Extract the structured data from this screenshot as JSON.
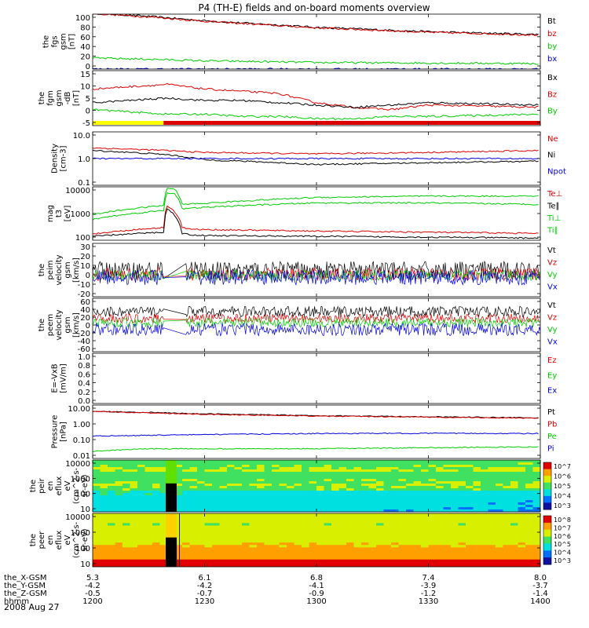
{
  "title": "P4 (TH-E) fields and on-board moments overview",
  "date": "2008 Aug 27",
  "colors": {
    "black": "#000000",
    "red": "#dd0000",
    "green": "#00cc00",
    "blue": "#0000dd",
    "yellow": "#ffff00"
  },
  "chart_data": [
    {
      "type": "line",
      "id": "fgs",
      "ylabel": [
        "the",
        "fgs",
        "gsm",
        "[nT]"
      ],
      "yticks": [
        "100",
        "80",
        "60",
        "40",
        "20",
        "0"
      ],
      "ylim": [
        0,
        100
      ],
      "legend": [
        {
          "name": "Bt",
          "color": "black"
        },
        {
          "name": "bz",
          "color": "red"
        },
        {
          "name": "by",
          "color": "green"
        },
        {
          "name": "bx",
          "color": "blue"
        }
      ],
      "series": [
        {
          "name": "Bt",
          "x": [
            1200,
            1215,
            1230,
            1300,
            1330,
            1400
          ],
          "y": [
            102,
            96,
            88,
            76,
            68,
            63
          ]
        },
        {
          "name": "bz",
          "x": [
            1200,
            1215,
            1230,
            1300,
            1330,
            1400
          ],
          "y": [
            101,
            95,
            87,
            75,
            67,
            62
          ]
        },
        {
          "name": "by",
          "x": [
            1200,
            1215,
            1230,
            1300,
            1330,
            1400
          ],
          "y": [
            20,
            18,
            15,
            12,
            11,
            10
          ]
        },
        {
          "name": "bx",
          "x": [
            1200,
            1215,
            1230,
            1300,
            1330,
            1400
          ],
          "y": [
            0,
            0,
            0,
            0,
            0,
            0
          ]
        }
      ]
    },
    {
      "type": "line",
      "id": "fgm_dsl",
      "ylabel": [
        "the",
        "fgm",
        "gsm",
        "-dB",
        "[nT]"
      ],
      "yticks": [
        "15",
        "10",
        "5",
        "0",
        "-5"
      ],
      "ylim": [
        -8,
        16
      ],
      "legend": [
        {
          "name": "Bx",
          "color": "black"
        },
        {
          "name": "Bz",
          "color": "red"
        },
        {
          "name": "By",
          "color": "green"
        }
      ],
      "series": [
        {
          "name": "Bz",
          "x": [
            1200,
            1210,
            1220,
            1230,
            1240,
            1250,
            1300,
            1310,
            1320,
            1330,
            1400
          ],
          "y": [
            8,
            9,
            10,
            8,
            7,
            6,
            2,
            0,
            -1,
            1,
            0
          ]
        },
        {
          "name": "Bx",
          "x": [
            1200,
            1210,
            1220,
            1230,
            1240,
            1250,
            1300,
            1310,
            1320,
            1330,
            1400
          ],
          "y": [
            2,
            3,
            4,
            3,
            3,
            2,
            1,
            0,
            1,
            2,
            1
          ]
        },
        {
          "name": "By",
          "x": [
            1200,
            1210,
            1220,
            1230,
            1240,
            1250,
            1300,
            1310,
            1320,
            1330,
            1400
          ],
          "y": [
            -1,
            -2,
            -3,
            -3,
            -4,
            -4,
            -5,
            -5,
            -4,
            -4,
            -3
          ]
        }
      ],
      "mode_bar": [
        {
          "from": 1200,
          "to": 1219,
          "color": "yellow"
        },
        {
          "from": 1219,
          "to": 1400,
          "color": "red"
        }
      ]
    },
    {
      "type": "line",
      "id": "density",
      "yscale": "log",
      "ylabel": [
        "Density",
        "[cm-3]"
      ],
      "yticks": [
        "10.0",
        "1.0",
        "0.1"
      ],
      "ylim": [
        0.1,
        10
      ],
      "legend": [
        {
          "name": "Ne",
          "color": "red"
        },
        {
          "name": "Ni",
          "color": "black"
        },
        {
          "name": "Npot",
          "color": "blue"
        }
      ],
      "series": [
        {
          "name": "Ne",
          "x": [
            1200,
            1220,
            1230,
            1300,
            1330,
            1400
          ],
          "y": [
            2.5,
            2.0,
            1.7,
            1.5,
            1.7,
            2.0
          ]
        },
        {
          "name": "Ni",
          "x": [
            1200,
            1220,
            1230,
            1300,
            1330,
            1400
          ],
          "y": [
            2.0,
            1.4,
            0.9,
            0.6,
            0.7,
            0.8
          ]
        },
        {
          "name": "Npot",
          "x": [
            1200,
            1220,
            1230,
            1300,
            1330,
            1400
          ],
          "y": [
            1.0,
            1.0,
            1.0,
            1.0,
            1.0,
            1.0
          ]
        }
      ]
    },
    {
      "type": "line",
      "id": "temperature",
      "yscale": "log",
      "ylabel": [
        "mag",
        "t3",
        "[eV]"
      ],
      "yticks": [
        "10000",
        "1000",
        "100"
      ],
      "ylim": [
        100,
        10000
      ],
      "legend": [
        {
          "name": "Te⊥",
          "color": "red"
        },
        {
          "name": "Te∥",
          "color": "black"
        },
        {
          "name": "Ti⊥",
          "color": "green"
        },
        {
          "name": "Ti∥",
          "color": "green"
        }
      ],
      "series": [
        {
          "name": "Ti⊥",
          "x": [
            1200,
            1219,
            1220,
            1222,
            1224,
            1230,
            1300,
            1330,
            1400
          ],
          "y": [
            900,
            2000,
            9000,
            8000,
            2200,
            2400,
            4000,
            4500,
            4500
          ]
        },
        {
          "name": "Ti∥",
          "x": [
            1200,
            1219,
            1220,
            1222,
            1224,
            1230,
            1300,
            1330,
            1400
          ],
          "y": [
            600,
            1300,
            6000,
            5500,
            1500,
            1700,
            2500,
            2500,
            2200
          ]
        },
        {
          "name": "Te⊥",
          "x": [
            1200,
            1219,
            1220,
            1224,
            1226,
            1230,
            1300,
            1330,
            1400
          ],
          "y": [
            170,
            300,
            2000,
            300,
            260,
            250,
            220,
            200,
            180
          ]
        },
        {
          "name": "Te∥",
          "x": [
            1200,
            1219,
            1220,
            1224,
            1226,
            1230,
            1300,
            1330,
            1400
          ],
          "y": [
            140,
            200,
            1500,
            180,
            160,
            150,
            140,
            130,
            120
          ]
        }
      ]
    },
    {
      "type": "line",
      "id": "peim_velocity_1",
      "ylabel": [
        "the",
        "peim",
        "velocity",
        "gsm",
        "[km/s]"
      ],
      "yticks": [
        "30",
        "20",
        "10",
        "0",
        "-10",
        "-20"
      ],
      "ylim": [
        -20,
        30
      ],
      "legend": [
        {
          "name": "Vt",
          "color": "black"
        },
        {
          "name": "Vz",
          "color": "red"
        },
        {
          "name": "Vy",
          "color": "green"
        },
        {
          "name": "Vx",
          "color": "blue"
        }
      ],
      "noise": [
        {
          "name": "Vt",
          "mean": 5,
          "amp": 8
        },
        {
          "name": "Vz",
          "mean": 1,
          "amp": 6
        },
        {
          "name": "Vy",
          "mean": 0,
          "amp": 5
        },
        {
          "name": "Vx",
          "mean": -2,
          "amp": 7
        }
      ]
    },
    {
      "type": "line",
      "id": "peem_velocity",
      "ylabel": [
        "the",
        "peem",
        "velocity",
        "gsm",
        "[km/s]"
      ],
      "yticks": [
        "60",
        "40",
        "20",
        "0",
        "-20",
        "-40",
        "-60"
      ],
      "ylim": [
        -60,
        60
      ],
      "legend": [
        {
          "name": "Vt",
          "color": "black"
        },
        {
          "name": "Vz",
          "color": "red"
        },
        {
          "name": "Vy",
          "color": "green"
        },
        {
          "name": "Vx",
          "color": "blue"
        }
      ],
      "noise": [
        {
          "name": "Vt",
          "mean": 30,
          "amp": 12
        },
        {
          "name": "Vz",
          "mean": 15,
          "amp": 10
        },
        {
          "name": "Vy",
          "mean": 5,
          "amp": 10
        },
        {
          "name": "Vx",
          "mean": -10,
          "amp": 14
        }
      ]
    },
    {
      "type": "line",
      "id": "efield",
      "ylabel": [
        "E=-VxB",
        "[mV/m]"
      ],
      "yticks": [
        "1.0",
        "0.8",
        "0.6",
        "0.4",
        "0.2",
        "0.0"
      ],
      "ylim": [
        0,
        1
      ],
      "legend": [
        {
          "name": "Ez",
          "color": "red"
        },
        {
          "name": "Ey",
          "color": "green"
        },
        {
          "name": "Ex",
          "color": "blue"
        }
      ],
      "series": []
    },
    {
      "type": "line",
      "id": "pressure",
      "yscale": "log",
      "ylabel": [
        "Pressure",
        "[nPa]"
      ],
      "yticks": [
        "10.00",
        "1.00",
        "0.10",
        "0.01"
      ],
      "ylim": [
        0.01,
        10
      ],
      "legend": [
        {
          "name": "Pt",
          "color": "black"
        },
        {
          "name": "Pb",
          "color": "red"
        },
        {
          "name": "Pe",
          "color": "green"
        },
        {
          "name": "Pi",
          "color": "blue"
        }
      ],
      "series": [
        {
          "name": "Pt",
          "x": [
            1200,
            1230,
            1300,
            1330,
            1400
          ],
          "y": [
            4.5,
            3.2,
            2.5,
            2.2,
            1.9
          ]
        },
        {
          "name": "Pb",
          "x": [
            1200,
            1230,
            1300,
            1330,
            1400
          ],
          "y": [
            4.3,
            3.0,
            2.4,
            2.1,
            1.8
          ]
        },
        {
          "name": "Pi",
          "x": [
            1200,
            1230,
            1300,
            1330,
            1400
          ],
          "y": [
            0.18,
            0.22,
            0.25,
            0.26,
            0.25
          ]
        },
        {
          "name": "Pe",
          "x": [
            1200,
            1215,
            1230,
            1300,
            1330,
            1400
          ],
          "y": [
            0.025,
            0.035,
            0.035,
            0.035,
            0.04,
            0.045
          ]
        }
      ]
    },
    {
      "type": "heatmap",
      "id": "peir_eflux",
      "yscale": "log",
      "ylabel": [
        "the",
        "peir",
        "en",
        "eflux",
        "eV",
        "(cm^2-s-",
        "sr-eV)"
      ],
      "yticks": [
        "10000",
        "1000",
        "100",
        "10"
      ],
      "ylim": [
        8,
        20000
      ],
      "colorbar": {
        "ticks": [
          "10^7",
          "10^6",
          "10^5",
          "10^4",
          "10^3"
        ],
        "range": [
          3,
          7.5
        ]
      }
    },
    {
      "type": "heatmap",
      "id": "peer_eflux",
      "yscale": "log",
      "ylabel": [
        "the",
        "peer",
        "en",
        "eflux",
        "eV",
        "(cm^2-s-",
        "sr-eV)"
      ],
      "yticks": [
        "10000",
        "1000",
        "100",
        "10"
      ],
      "ylim": [
        8,
        20000
      ],
      "colorbar": {
        "ticks": [
          "10^8",
          "10^7",
          "10^6",
          "10^5",
          "10^4",
          "10^3"
        ],
        "range": [
          3,
          8.5
        ]
      }
    }
  ],
  "x_axis": {
    "range": [
      1200,
      1400
    ],
    "tick_positions": [
      1200,
      1230,
      1300,
      1330,
      1400
    ],
    "rows": [
      {
        "label": "the_X-GSM",
        "values": [
          "5.3",
          "6.1",
          "6.8",
          "7.4",
          "8.0"
        ]
      },
      {
        "label": "the_Y-GSM",
        "values": [
          "-4.2",
          "-4.2",
          "-4.1",
          "-3.9",
          "-3.7"
        ]
      },
      {
        "label": "the_Z-GSM",
        "values": [
          "-0.5",
          "-0.7",
          "-0.9",
          "-1.2",
          "-1.4"
        ]
      },
      {
        "label": "hhmm",
        "values": [
          "1200",
          "1230",
          "1300",
          "1330",
          "1400"
        ]
      }
    ]
  }
}
